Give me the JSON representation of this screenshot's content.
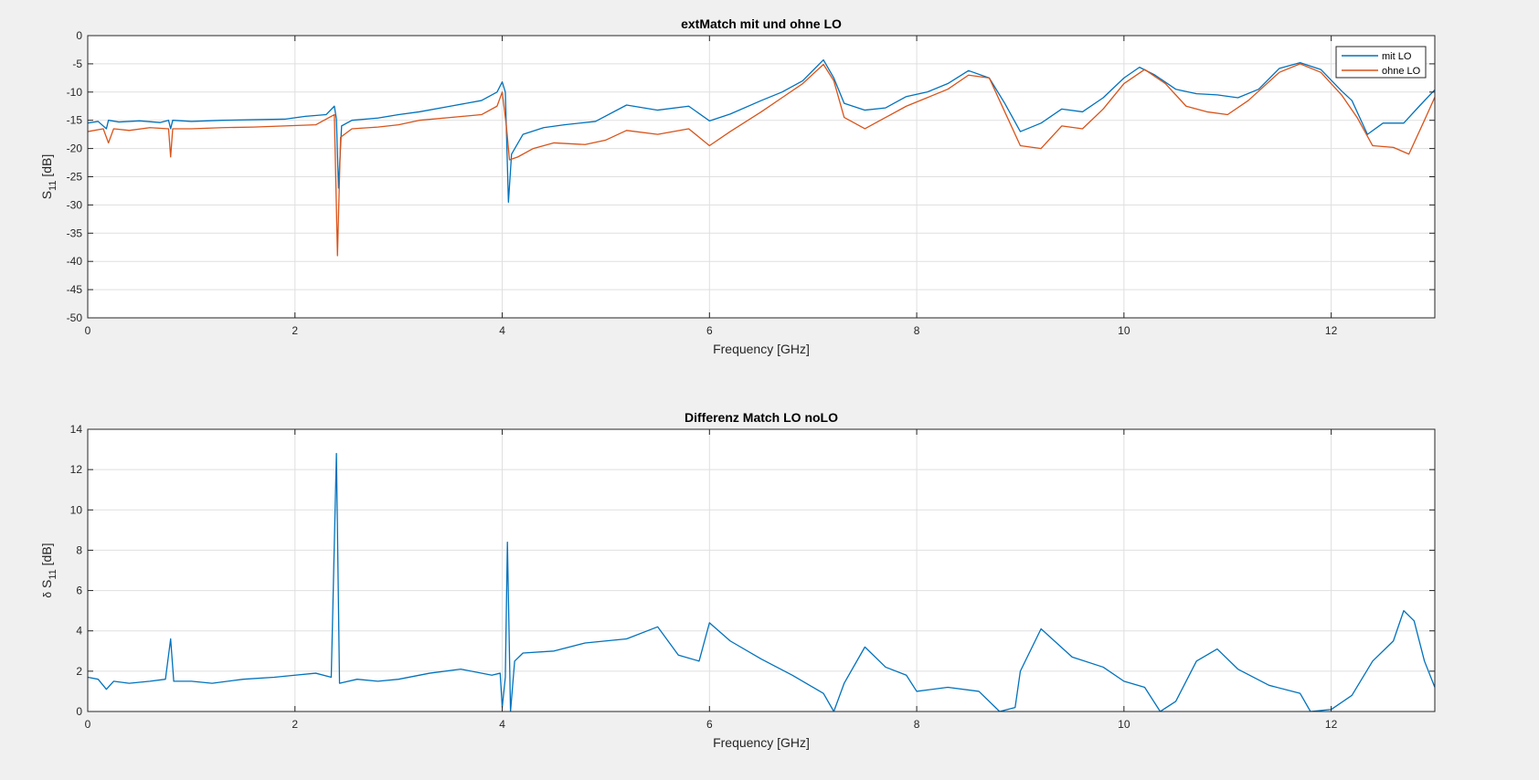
{
  "chart_data": [
    {
      "type": "line",
      "title": "extMatch mit und ohne LO",
      "xlabel": "Frequency [GHz]",
      "ylabel": {
        "main": "S",
        "sub": "11",
        "unit": " [dB]"
      },
      "xlim": [
        0,
        13
      ],
      "ylim": [
        -50,
        0
      ],
      "xticks": [
        0,
        2,
        4,
        6,
        8,
        10,
        12
      ],
      "yticks": [
        0,
        -5,
        -10,
        -15,
        -20,
        -25,
        -30,
        -35,
        -40,
        -45,
        -50
      ],
      "grid": true,
      "legend": {
        "position": "top-right"
      },
      "series": [
        {
          "name": "mit LO",
          "color": "#0072BD",
          "points": [
            [
              0,
              -15.5
            ],
            [
              0.1,
              -15.2
            ],
            [
              0.18,
              -16.5
            ],
            [
              0.2,
              -15
            ],
            [
              0.3,
              -15.3
            ],
            [
              0.5,
              -15.1
            ],
            [
              0.7,
              -15.4
            ],
            [
              0.78,
              -15
            ],
            [
              0.8,
              -16.5
            ],
            [
              0.82,
              -15
            ],
            [
              1,
              -15.2
            ],
            [
              1.3,
              -15
            ],
            [
              1.6,
              -14.9
            ],
            [
              1.9,
              -14.8
            ],
            [
              2.1,
              -14.3
            ],
            [
              2.3,
              -14
            ],
            [
              2.38,
              -12.5
            ],
            [
              2.4,
              -14.8
            ],
            [
              2.42,
              -27
            ],
            [
              2.45,
              -16
            ],
            [
              2.55,
              -15
            ],
            [
              2.8,
              -14.6
            ],
            [
              3,
              -14
            ],
            [
              3.2,
              -13.5
            ],
            [
              3.5,
              -12.5
            ],
            [
              3.8,
              -11.5
            ],
            [
              3.95,
              -10
            ],
            [
              4,
              -8.2
            ],
            [
              4.03,
              -10
            ],
            [
              4.06,
              -29.5
            ],
            [
              4.09,
              -21
            ],
            [
              4.2,
              -17.5
            ],
            [
              4.4,
              -16.3
            ],
            [
              4.6,
              -15.8
            ],
            [
              4.9,
              -15.2
            ],
            [
              5.2,
              -12.3
            ],
            [
              5.5,
              -13.2
            ],
            [
              5.8,
              -12.5
            ],
            [
              6,
              -15.1
            ],
            [
              6.2,
              -13.9
            ],
            [
              6.5,
              -11.5
            ],
            [
              6.7,
              -10
            ],
            [
              6.9,
              -8
            ],
            [
              7.1,
              -4.3
            ],
            [
              7.2,
              -7.5
            ],
            [
              7.3,
              -12
            ],
            [
              7.5,
              -13.2
            ],
            [
              7.7,
              -12.8
            ],
            [
              7.9,
              -10.8
            ],
            [
              8.1,
              -10
            ],
            [
              8.3,
              -8.5
            ],
            [
              8.5,
              -6.2
            ],
            [
              8.7,
              -7.5
            ],
            [
              8.85,
              -12
            ],
            [
              9,
              -17
            ],
            [
              9.2,
              -15.5
            ],
            [
              9.4,
              -13
            ],
            [
              9.6,
              -13.5
            ],
            [
              9.8,
              -11
            ],
            [
              10,
              -7.5
            ],
            [
              10.15,
              -5.6
            ],
            [
              10.3,
              -7
            ],
            [
              10.5,
              -9.5
            ],
            [
              10.7,
              -10.3
            ],
            [
              10.9,
              -10.5
            ],
            [
              11.1,
              -11
            ],
            [
              11.3,
              -9.5
            ],
            [
              11.5,
              -5.8
            ],
            [
              11.7,
              -4.8
            ],
            [
              11.9,
              -6
            ],
            [
              12.1,
              -9.8
            ],
            [
              12.2,
              -11.5
            ],
            [
              12.35,
              -17.5
            ],
            [
              12.5,
              -15.5
            ],
            [
              12.7,
              -15.5
            ],
            [
              12.85,
              -12.5
            ],
            [
              13,
              -9.6
            ]
          ]
        },
        {
          "name": "ohne LO",
          "color": "#D95319",
          "points": [
            [
              0,
              -17
            ],
            [
              0.15,
              -16.5
            ],
            [
              0.2,
              -19
            ],
            [
              0.25,
              -16.5
            ],
            [
              0.4,
              -16.8
            ],
            [
              0.6,
              -16.3
            ],
            [
              0.78,
              -16.5
            ],
            [
              0.8,
              -21.5
            ],
            [
              0.82,
              -16.5
            ],
            [
              1,
              -16.5
            ],
            [
              1.3,
              -16.3
            ],
            [
              1.6,
              -16.2
            ],
            [
              1.9,
              -16
            ],
            [
              2.2,
              -15.8
            ],
            [
              2.38,
              -14
            ],
            [
              2.41,
              -39
            ],
            [
              2.44,
              -18
            ],
            [
              2.55,
              -16.5
            ],
            [
              2.8,
              -16.2
            ],
            [
              3,
              -15.8
            ],
            [
              3.2,
              -15
            ],
            [
              3.5,
              -14.5
            ],
            [
              3.8,
              -14
            ],
            [
              3.95,
              -12.5
            ],
            [
              4,
              -10
            ],
            [
              4.04,
              -16
            ],
            [
              4.07,
              -22
            ],
            [
              4.15,
              -21.5
            ],
            [
              4.3,
              -20
            ],
            [
              4.5,
              -19
            ],
            [
              4.8,
              -19.3
            ],
            [
              5,
              -18.5
            ],
            [
              5.2,
              -16.8
            ],
            [
              5.5,
              -17.5
            ],
            [
              5.8,
              -16.5
            ],
            [
              6,
              -19.5
            ],
            [
              6.2,
              -17
            ],
            [
              6.5,
              -13.5
            ],
            [
              6.7,
              -11
            ],
            [
              6.9,
              -8.5
            ],
            [
              7.1,
              -5.1
            ],
            [
              7.2,
              -8
            ],
            [
              7.3,
              -14.5
            ],
            [
              7.5,
              -16.5
            ],
            [
              7.7,
              -14.5
            ],
            [
              7.9,
              -12.5
            ],
            [
              8.1,
              -11
            ],
            [
              8.3,
              -9.5
            ],
            [
              8.5,
              -7
            ],
            [
              8.7,
              -7.5
            ],
            [
              8.85,
              -13.5
            ],
            [
              9,
              -19.5
            ],
            [
              9.2,
              -20
            ],
            [
              9.4,
              -16
            ],
            [
              9.6,
              -16.5
            ],
            [
              9.8,
              -13
            ],
            [
              10,
              -8.5
            ],
            [
              10.2,
              -6
            ],
            [
              10.4,
              -8.5
            ],
            [
              10.6,
              -12.5
            ],
            [
              10.8,
              -13.5
            ],
            [
              11,
              -14
            ],
            [
              11.2,
              -11.5
            ],
            [
              11.5,
              -6.5
            ],
            [
              11.7,
              -5
            ],
            [
              11.9,
              -6.5
            ],
            [
              12.1,
              -10.5
            ],
            [
              12.25,
              -14.5
            ],
            [
              12.4,
              -19.5
            ],
            [
              12.6,
              -19.8
            ],
            [
              12.75,
              -21
            ],
            [
              12.9,
              -15
            ],
            [
              13,
              -10.9
            ]
          ]
        }
      ]
    },
    {
      "type": "line",
      "title": "Differenz Match LO noLO",
      "xlabel": "Frequency [GHz]",
      "ylabel": {
        "prefix": "δ",
        "main": " S",
        "sub": "11",
        "unit": "  [dB]"
      },
      "xlim": [
        0,
        13
      ],
      "ylim": [
        0,
        14
      ],
      "xticks": [
        0,
        2,
        4,
        6,
        8,
        10,
        12
      ],
      "yticks": [
        0,
        2,
        4,
        6,
        8,
        10,
        12,
        14
      ],
      "grid": true,
      "series": [
        {
          "color": "#0072BD",
          "points": [
            [
              0,
              1.7
            ],
            [
              0.1,
              1.6
            ],
            [
              0.18,
              1.1
            ],
            [
              0.25,
              1.5
            ],
            [
              0.4,
              1.4
            ],
            [
              0.6,
              1.5
            ],
            [
              0.75,
              1.6
            ],
            [
              0.8,
              3.6
            ],
            [
              0.83,
              1.5
            ],
            [
              1,
              1.5
            ],
            [
              1.2,
              1.4
            ],
            [
              1.5,
              1.6
            ],
            [
              1.8,
              1.7
            ],
            [
              2,
              1.8
            ],
            [
              2.2,
              1.9
            ],
            [
              2.35,
              1.7
            ],
            [
              2.4,
              12.8
            ],
            [
              2.43,
              1.4
            ],
            [
              2.6,
              1.6
            ],
            [
              2.8,
              1.5
            ],
            [
              3,
              1.6
            ],
            [
              3.3,
              1.9
            ],
            [
              3.6,
              2.1
            ],
            [
              3.9,
              1.8
            ],
            [
              3.98,
              1.9
            ],
            [
              4,
              0.2
            ],
            [
              4.03,
              1.7
            ],
            [
              4.05,
              8.4
            ],
            [
              4.08,
              0
            ],
            [
              4.12,
              2.5
            ],
            [
              4.2,
              2.9
            ],
            [
              4.5,
              3
            ],
            [
              4.8,
              3.4
            ],
            [
              5.2,
              3.6
            ],
            [
              5.5,
              4.2
            ],
            [
              5.7,
              2.8
            ],
            [
              5.9,
              2.5
            ],
            [
              6,
              4.4
            ],
            [
              6.2,
              3.5
            ],
            [
              6.5,
              2.6
            ],
            [
              6.8,
              1.8
            ],
            [
              7.1,
              0.9
            ],
            [
              7.2,
              0
            ],
            [
              7.3,
              1.4
            ],
            [
              7.5,
              3.2
            ],
            [
              7.7,
              2.2
            ],
            [
              7.9,
              1.8
            ],
            [
              8,
              1
            ],
            [
              8.3,
              1.2
            ],
            [
              8.6,
              1.0
            ],
            [
              8.8,
              0
            ],
            [
              8.95,
              0.2
            ],
            [
              9,
              2
            ],
            [
              9.2,
              4.1
            ],
            [
              9.5,
              2.7
            ],
            [
              9.8,
              2.2
            ],
            [
              10,
              1.5
            ],
            [
              10.2,
              1.2
            ],
            [
              10.35,
              0
            ],
            [
              10.5,
              0.5
            ],
            [
              10.7,
              2.5
            ],
            [
              10.9,
              3.1
            ],
            [
              11.1,
              2.1
            ],
            [
              11.4,
              1.3
            ],
            [
              11.7,
              0.9
            ],
            [
              11.8,
              0
            ],
            [
              12,
              0.1
            ],
            [
              12.2,
              0.8
            ],
            [
              12.4,
              2.5
            ],
            [
              12.6,
              3.5
            ],
            [
              12.7,
              5
            ],
            [
              12.8,
              4.5
            ],
            [
              12.9,
              2.5
            ],
            [
              13,
              1.2
            ]
          ]
        }
      ]
    }
  ]
}
